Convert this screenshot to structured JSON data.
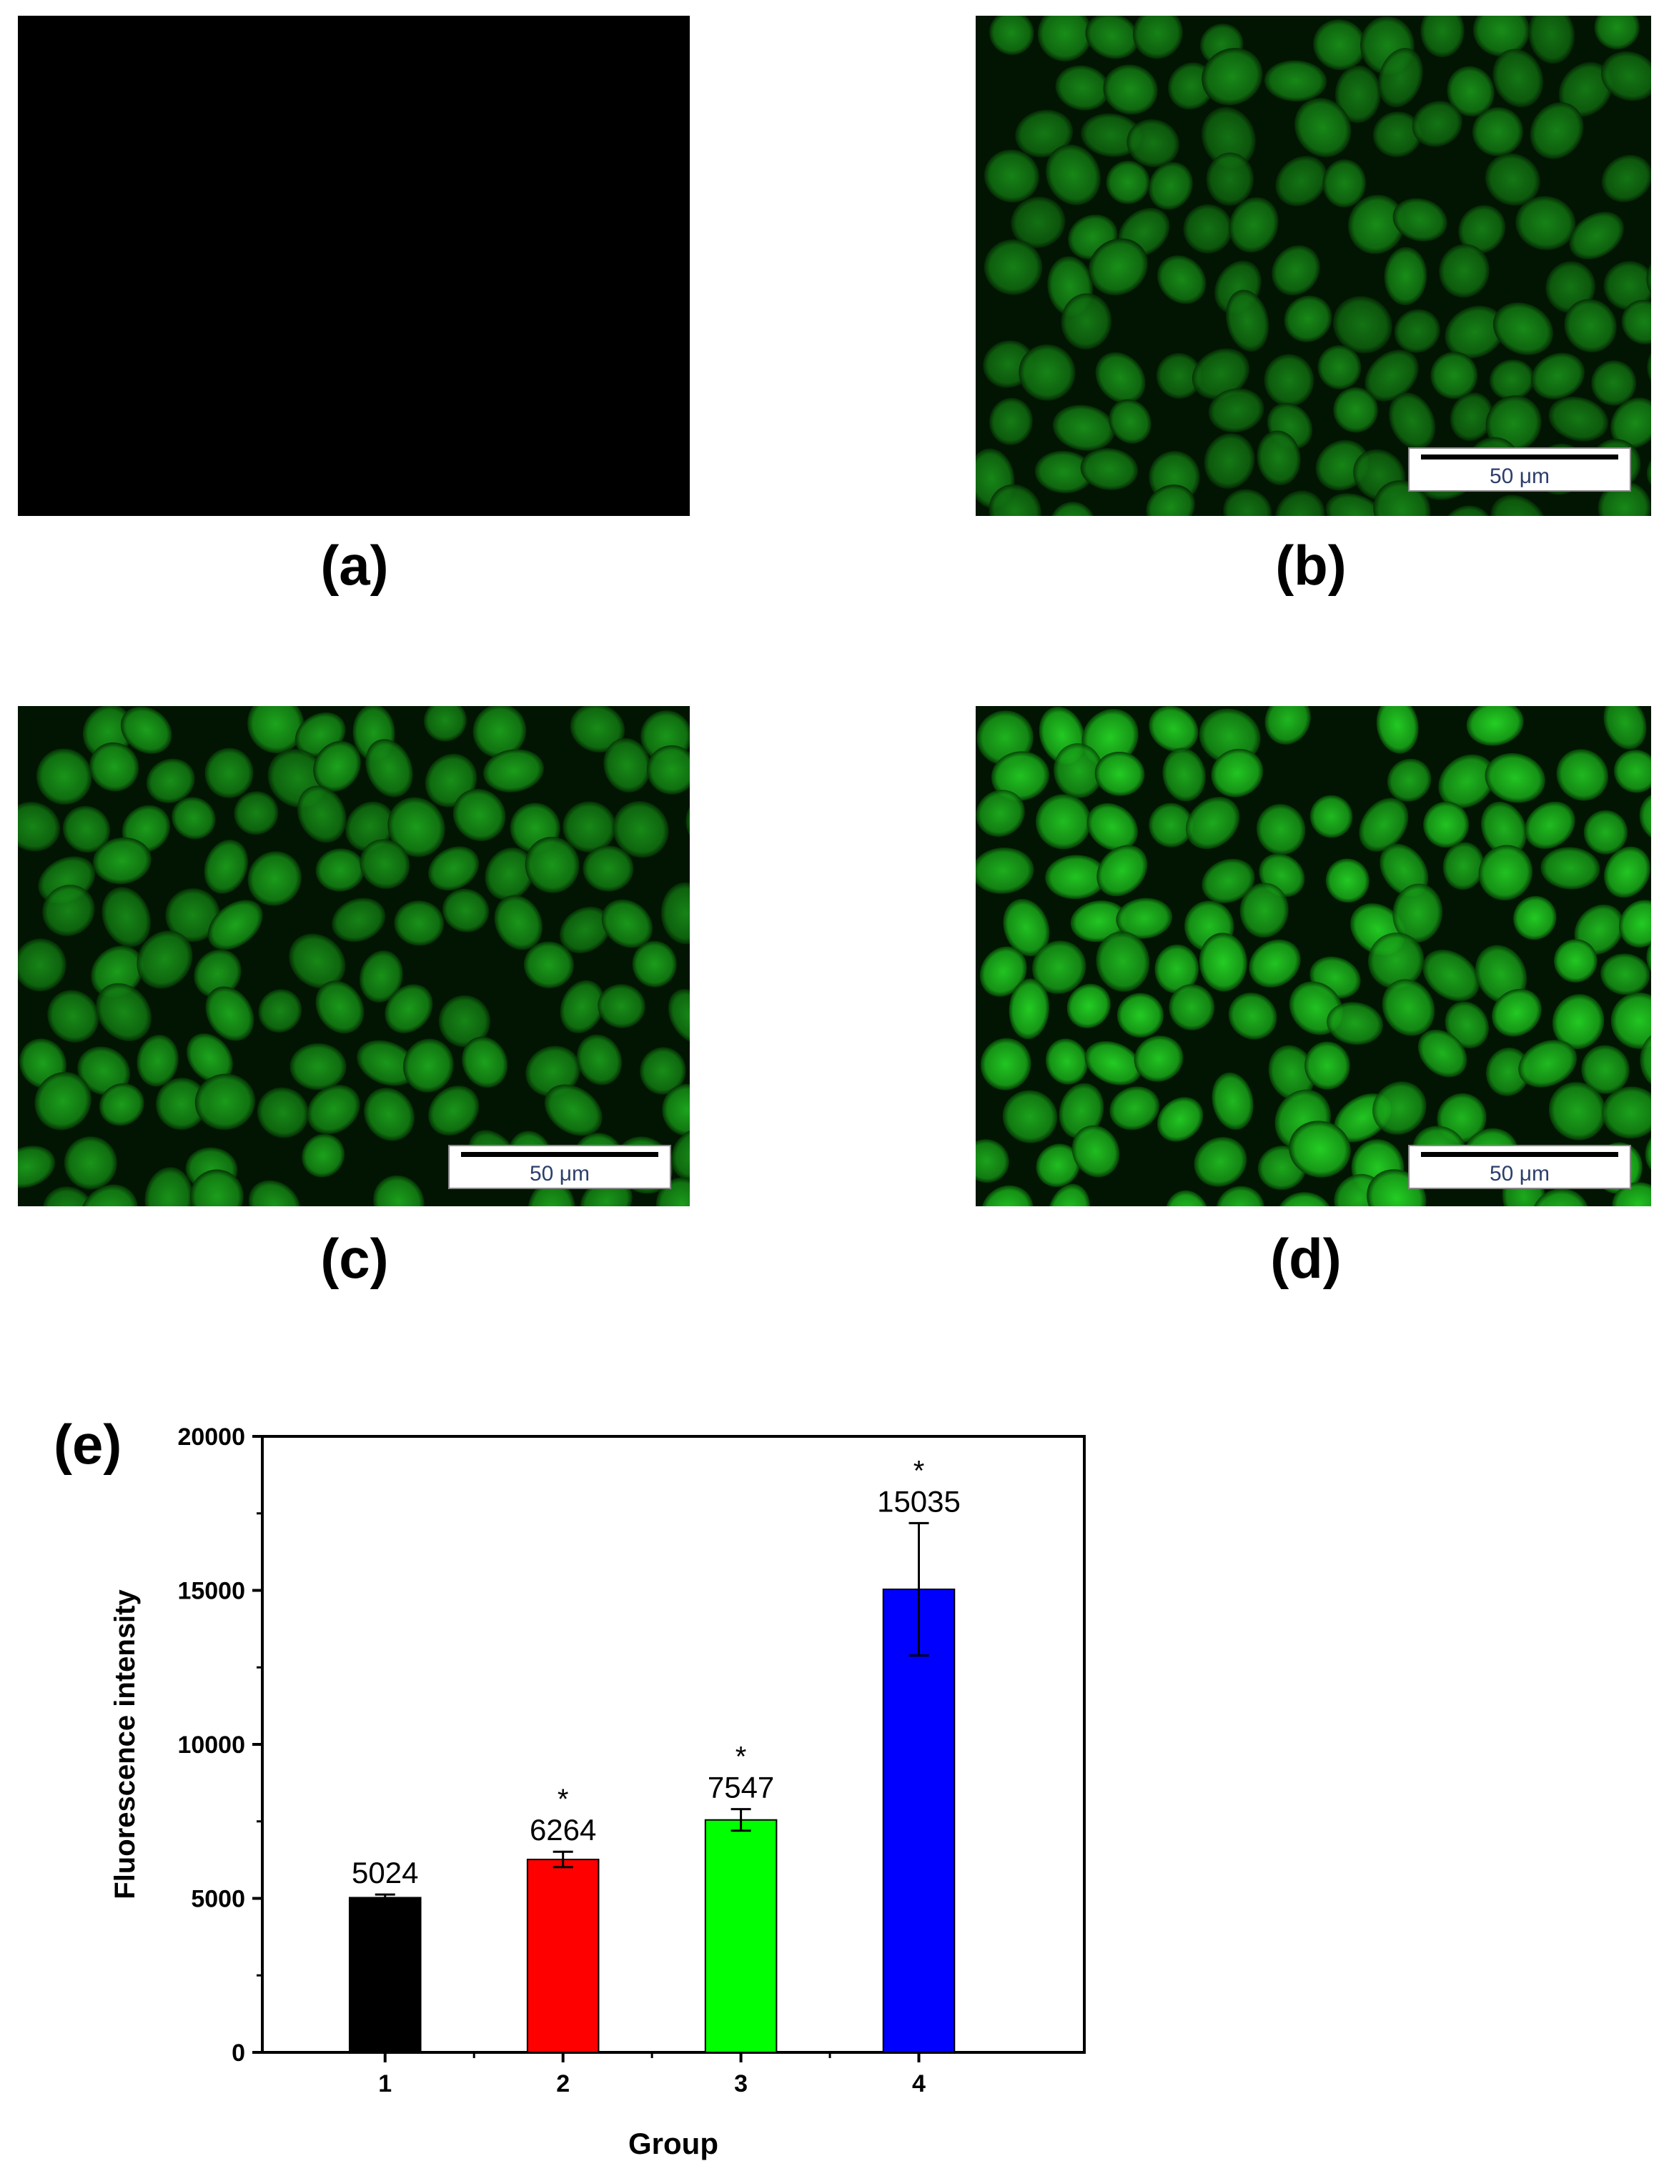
{
  "panels": [
    {
      "id": "a",
      "label": "(a)",
      "image": "black-fluorescence-micrograph",
      "scale_bar": ""
    },
    {
      "id": "b",
      "label": "(b)",
      "image": "green-fluorescence-micrograph-dim",
      "scale_bar": "50 μm"
    },
    {
      "id": "c",
      "label": "(c)",
      "image": "green-fluorescence-micrograph-medium",
      "scale_bar": "50 μm"
    },
    {
      "id": "d",
      "label": "(d)",
      "image": "green-fluorescence-micrograph-bright",
      "scale_bar": "50 μm"
    }
  ],
  "colors": {
    "background": "#ffffff",
    "cell_green": "#1fb31f",
    "scale_bar_text": "#2c3e6b"
  },
  "chart_data": {
    "panel_label": "(e)",
    "type": "bar",
    "categories": [
      "1",
      "2",
      "3",
      "4"
    ],
    "values": [
      5024,
      6264,
      7547,
      15035
    ],
    "value_labels": [
      "5024",
      "6264",
      "7547",
      "15035"
    ],
    "errors": [
      100,
      250,
      350,
      2150
    ],
    "significance": [
      "",
      "*",
      "*",
      "*"
    ],
    "bar_colors": [
      "#000000",
      "#ff0000",
      "#00ff00",
      "#0000ff"
    ],
    "xlabel": "Group",
    "ylabel": "Fluorescence intensity",
    "ylim": [
      0,
      20000
    ],
    "yticks": [
      0,
      5000,
      10000,
      15000,
      20000
    ],
    "grid": false,
    "legend": "none"
  }
}
